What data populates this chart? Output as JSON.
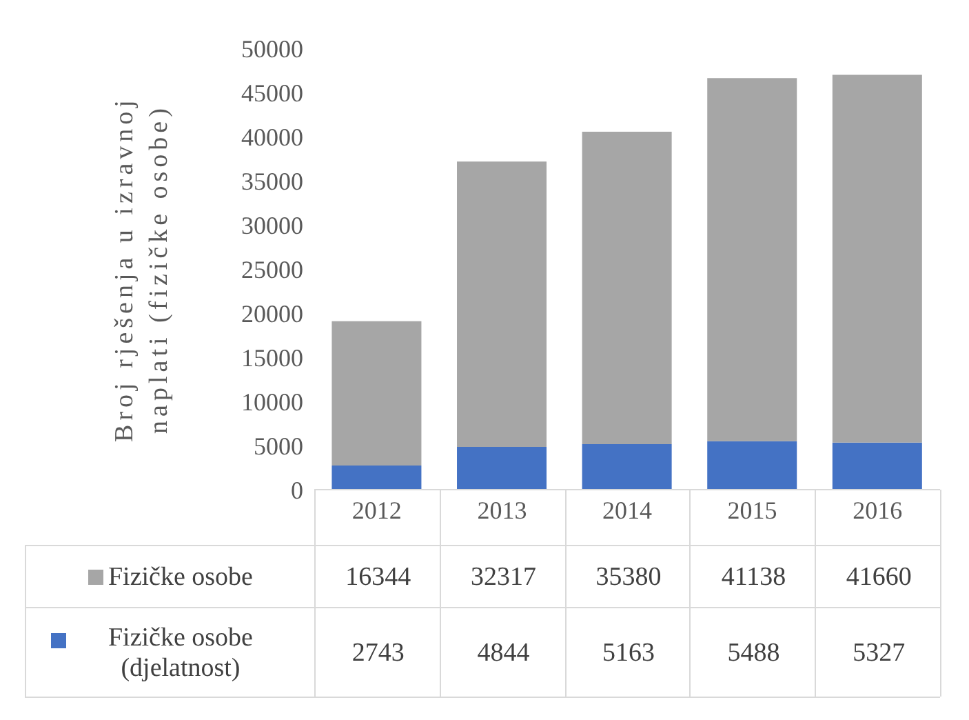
{
  "chart_data": {
    "type": "bar",
    "stacked": true,
    "ylabel": "Broj rješenja u izravnoj naplati (fizičke osobe)",
    "categories": [
      "2012",
      "2013",
      "2014",
      "2015",
      "2016"
    ],
    "series": [
      {
        "name": "Fizičke osobe (djelatnost)",
        "color": "#4472c4",
        "values": [
          2743,
          4844,
          5163,
          5488,
          5327
        ]
      },
      {
        "name": "Fizičke osobe",
        "color": "#a6a6a6",
        "values": [
          16344,
          32317,
          35380,
          41138,
          41660
        ]
      }
    ],
    "ylim": [
      0,
      50000
    ],
    "yticks": [
      0,
      5000,
      10000,
      15000,
      20000,
      25000,
      30000,
      35000,
      40000,
      45000,
      50000
    ],
    "grid": false,
    "legend": "bottom",
    "data_labels": true
  }
}
